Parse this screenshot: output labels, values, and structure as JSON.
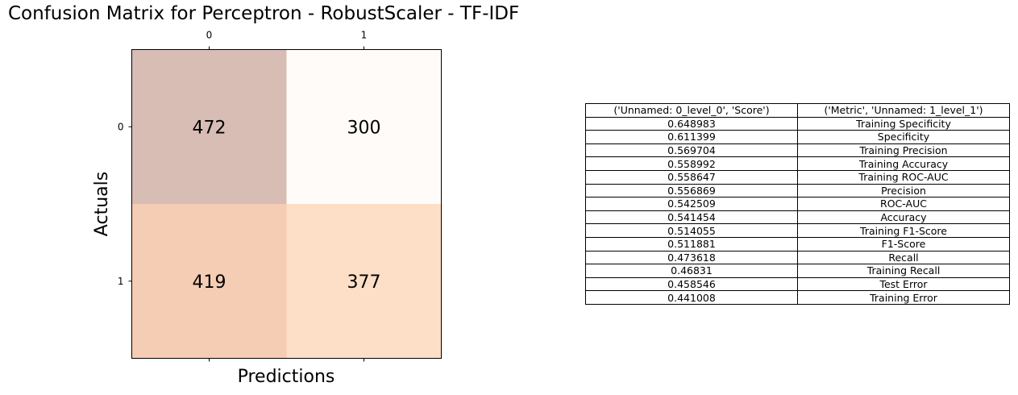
{
  "chart_data": [
    {
      "type": "heatmap",
      "title": "Confusion Matrix for Perceptron - RobustScaler - TF-IDF",
      "xlabel": "Predictions",
      "ylabel": "Actuals",
      "x_tick_labels": [
        "0",
        "1"
      ],
      "y_tick_labels": [
        "0",
        "1"
      ],
      "x_ticks_position": "top",
      "matrix": [
        [
          472,
          300
        ],
        [
          419,
          377
        ]
      ],
      "cell_colors": [
        [
          "#d8bdb5",
          "#fffbf8"
        ],
        [
          "#f5ccb4",
          "#fddec6"
        ]
      ],
      "grid": false
    },
    {
      "type": "table",
      "columns": [
        "('Unnamed: 0_level_0', 'Score')",
        "('Metric', 'Unnamed: 1_level_1')"
      ],
      "rows": [
        [
          "0.648983",
          "Training Specificity"
        ],
        [
          "0.611399",
          "Specificity"
        ],
        [
          "0.569704",
          "Training Precision"
        ],
        [
          "0.558992",
          "Training Accuracy"
        ],
        [
          "0.558647",
          "Training ROC-AUC"
        ],
        [
          "0.556869",
          "Precision"
        ],
        [
          "0.542509",
          "ROC-AUC"
        ],
        [
          "0.541454",
          "Accuracy"
        ],
        [
          "0.514055",
          "Training F1-Score"
        ],
        [
          "0.511881",
          "F1-Score"
        ],
        [
          "0.473618",
          "Recall"
        ],
        [
          "0.46831",
          "Training Recall"
        ],
        [
          "0.458546",
          "Test Error"
        ],
        [
          "0.441008",
          "Training Error"
        ]
      ]
    }
  ]
}
